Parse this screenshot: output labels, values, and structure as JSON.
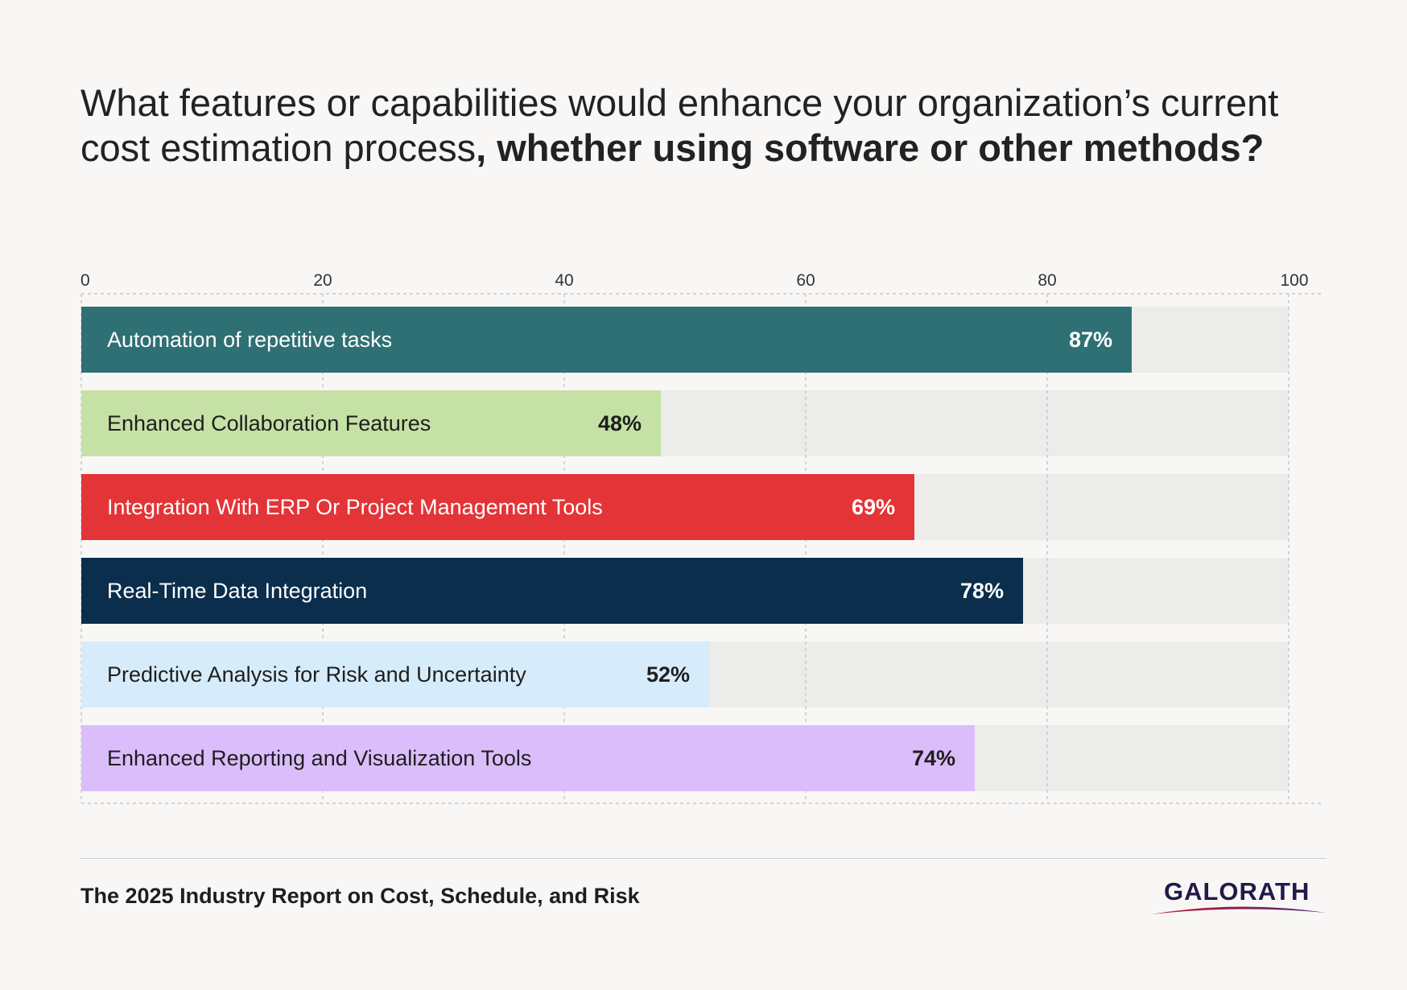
{
  "title": {
    "regular": "What features or capabilities would enhance your organization’s current cost estimation process",
    "bold": ", whether using software or other methods?"
  },
  "footer": {
    "source": "The 2025 Industry Report on Cost, Schedule, and Risk",
    "logo_text": "GALORATH"
  },
  "colors": {
    "background": "#f8f7f5",
    "track": "#ececea",
    "grid": "#c9c9c9"
  },
  "chart_data": {
    "type": "bar",
    "orientation": "horizontal",
    "xlim": [
      0,
      100
    ],
    "ticks": [
      "0",
      "20",
      "40",
      "60",
      "80",
      "100"
    ],
    "tick_values": [
      0,
      20,
      40,
      60,
      80,
      100
    ],
    "grid": true,
    "categories": [
      "Automation of repetitive tasks",
      "Enhanced Collaboration Features",
      "Integration With ERP Or Project Management Tools",
      "Real-Time Data Integration",
      "Predictive Analysis for Risk and Uncertainty",
      "Enhanced Reporting and Visualization Tools"
    ],
    "values": [
      87,
      48,
      69,
      78,
      52,
      74
    ],
    "value_labels": [
      "87%",
      "48%",
      "69%",
      "78%",
      "52%",
      "74%"
    ],
    "bar_colors": [
      "#2e7074",
      "#c5e1a5",
      "#e33437",
      "#0a2e4c",
      "#d7ecfb",
      "#dbbdfb"
    ],
    "label_colors": [
      "#ffffff",
      "#1e1e1e",
      "#ffffff",
      "#ffffff",
      "#1e1e1e",
      "#1e1e1e"
    ]
  }
}
